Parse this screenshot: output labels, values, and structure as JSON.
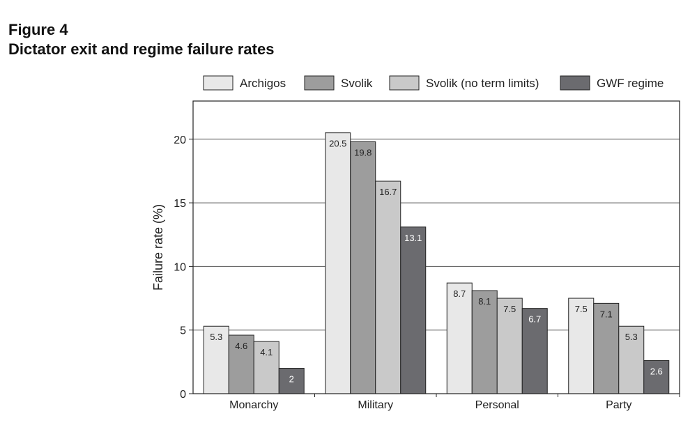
{
  "figure": {
    "label": "Figure 4",
    "title": "Dictator exit and regime failure rates"
  },
  "chart_data": {
    "type": "bar",
    "title": "Dictator exit and regime failure rates",
    "xlabel": "",
    "ylabel": "Failure rate (%)",
    "ylim": [
      0,
      23
    ],
    "yticks": [
      0,
      5,
      10,
      15,
      20
    ],
    "grid": true,
    "legend_position": "top",
    "categories": [
      "Monarchy",
      "Military",
      "Personal",
      "Party"
    ],
    "series": [
      {
        "name": "Archigos",
        "color": "#e8e8e8",
        "values": [
          5.3,
          20.5,
          8.7,
          7.5
        ],
        "labels": [
          "5.3",
          "20.5",
          "8.7",
          "7.5"
        ]
      },
      {
        "name": "Svolik",
        "color": "#9d9d9d",
        "values": [
          4.6,
          19.8,
          8.1,
          7.1
        ],
        "labels": [
          "4.6",
          "19.8",
          "8.1",
          "7.1"
        ]
      },
      {
        "name": "Svolik (no term limits)",
        "color": "#c9c9c9",
        "values": [
          4.1,
          16.7,
          7.5,
          5.3
        ],
        "labels": [
          "4.1",
          "16.7",
          "7.5",
          "5.3"
        ]
      },
      {
        "name": "GWF regime",
        "color": "#6b6b6f",
        "values": [
          2,
          13.1,
          6.7,
          2.6
        ],
        "labels": [
          "2",
          "13.1",
          "6.7",
          "2.6"
        ]
      }
    ]
  }
}
